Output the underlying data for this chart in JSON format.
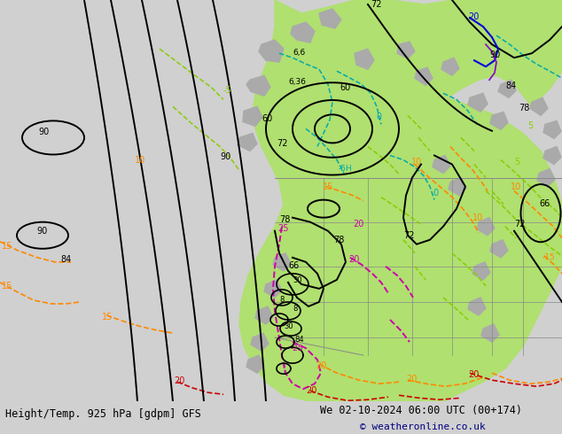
{
  "title_left": "Height/Temp. 925 hPa [gdpm] GFS",
  "title_right": "We 02-10-2024 06:00 UTC (00+174)",
  "copyright": "© weatheronline.co.uk",
  "bg_color": "#d0d0d0",
  "map_bg": "#d8d8d8",
  "green_fill": "#b0e070",
  "gray_fill": "#aaaaaa",
  "fig_width": 6.34,
  "fig_height": 4.9,
  "dpi": 100,
  "title_color": "#000000",
  "copyright_color": "#000080",
  "contour_black": "#000000",
  "contour_orange": "#ff8800",
  "contour_green": "#88cc00",
  "contour_cyan": "#00aaaa",
  "contour_blue": "#0000dd",
  "contour_magenta": "#cc00aa",
  "contour_red": "#cc0000",
  "contour_purple": "#8800cc"
}
